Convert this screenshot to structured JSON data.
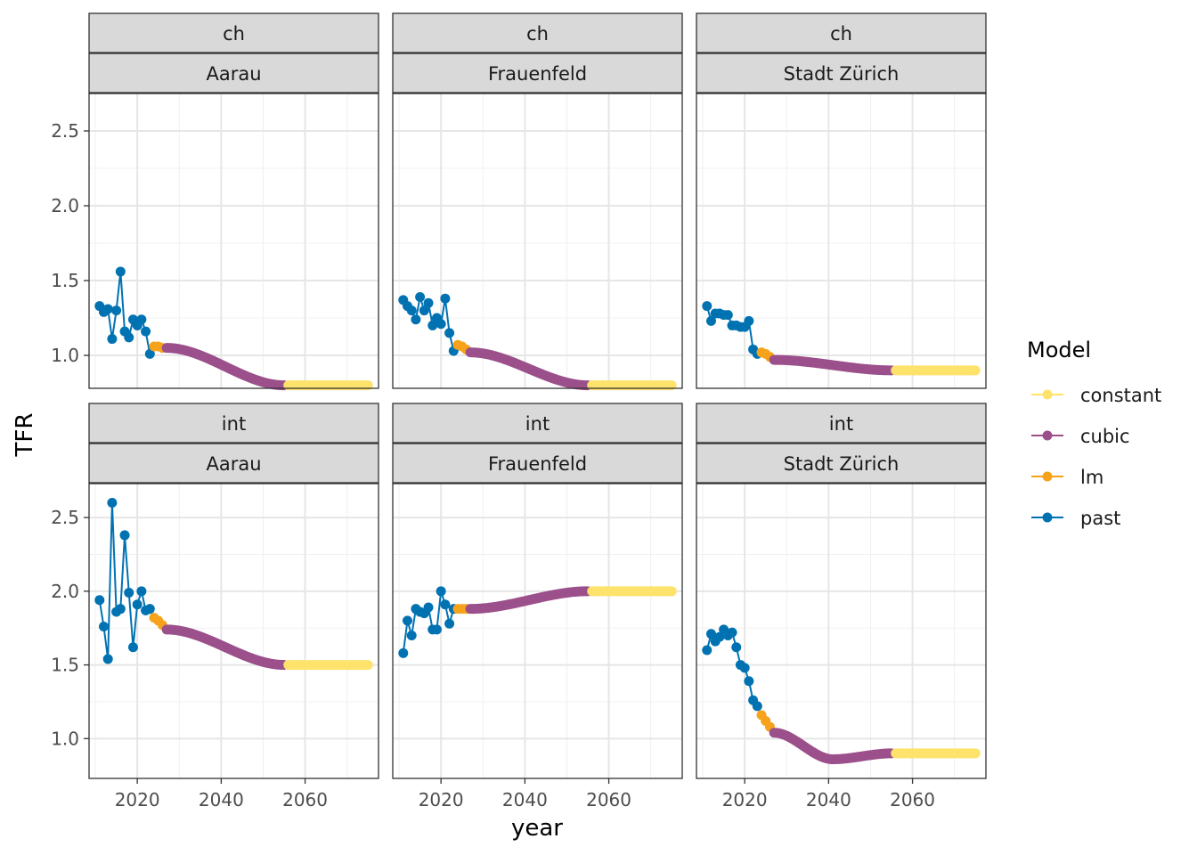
{
  "chart_data": {
    "type": "line",
    "xlabel": "year",
    "ylabel": "TFR",
    "xlim": [
      2008.5,
      2077.5
    ],
    "x_ticks": [
      2020,
      2040,
      2060
    ],
    "x_tick_labels": [
      "2020",
      "2040",
      "2060"
    ],
    "grid": true,
    "legend": {
      "title": "Model",
      "placement": "right",
      "entries": [
        {
          "label": "constant",
          "color": "#FDE26C"
        },
        {
          "label": "cubic",
          "color": "#9B4F8B"
        },
        {
          "label": "lm",
          "color": "#F7A21B"
        },
        {
          "label": "past",
          "color": "#0072B2"
        }
      ]
    },
    "colors": {
      "constant": "#FDE26C",
      "cubic": "#9B4F8B",
      "lm": "#F7A21B",
      "past": "#0072B2"
    },
    "rows": [
      {
        "strip": "ch",
        "ylim": [
          0.78,
          2.75
        ],
        "y_ticks": [
          1.0,
          1.5,
          2.0,
          2.5
        ],
        "y_tick_labels": [
          "1.0",
          "1.5",
          "2.0",
          "2.5"
        ]
      },
      {
        "strip": "int",
        "ylim": [
          0.73,
          2.73
        ],
        "y_ticks": [
          1.0,
          1.5,
          2.0,
          2.5
        ],
        "y_tick_labels": [
          "1.0",
          "1.5",
          "2.0",
          "2.5"
        ]
      }
    ],
    "panels": [
      {
        "row": 0,
        "col": 0,
        "strip_top": "ch",
        "strip_bottom": "Aarau",
        "past": {
          "x": [
            2011,
            2012,
            2013,
            2014,
            2015,
            2016,
            2017,
            2018,
            2019,
            2020,
            2021,
            2022,
            2023
          ],
          "y": [
            1.33,
            1.29,
            1.31,
            1.11,
            1.3,
            1.56,
            1.16,
            1.12,
            1.24,
            1.2,
            1.24,
            1.16,
            1.01
          ]
        },
        "lm": {
          "x": [
            2024,
            2025,
            2026
          ],
          "y": [
            1.06,
            1.06,
            1.05
          ]
        },
        "cubic": {
          "start": 2027,
          "end": 2055,
          "y_start": 1.05,
          "y_end": 0.8
        },
        "constant": {
          "start": 2056,
          "end": 2075,
          "y": 0.8
        }
      },
      {
        "row": 0,
        "col": 1,
        "strip_top": "ch",
        "strip_bottom": "Frauenfeld",
        "past": {
          "x": [
            2011,
            2012,
            2013,
            2014,
            2015,
            2016,
            2017,
            2018,
            2019,
            2020,
            2021,
            2022,
            2023
          ],
          "y": [
            1.37,
            1.33,
            1.3,
            1.24,
            1.39,
            1.3,
            1.35,
            1.2,
            1.25,
            1.21,
            1.38,
            1.15,
            1.03
          ]
        },
        "lm": {
          "x": [
            2024,
            2025,
            2026
          ],
          "y": [
            1.07,
            1.06,
            1.04
          ]
        },
        "cubic": {
          "start": 2027,
          "end": 2055,
          "y_start": 1.02,
          "y_end": 0.8
        },
        "constant": {
          "start": 2056,
          "end": 2075,
          "y": 0.8
        }
      },
      {
        "row": 0,
        "col": 2,
        "strip_top": "ch",
        "strip_bottom": "Stadt Zürich",
        "past": {
          "x": [
            2011,
            2012,
            2013,
            2014,
            2015,
            2016,
            2017,
            2018,
            2019,
            2020,
            2021,
            2022,
            2023
          ],
          "y": [
            1.33,
            1.23,
            1.28,
            1.28,
            1.27,
            1.27,
            1.2,
            1.2,
            1.19,
            1.19,
            1.23,
            1.04,
            1.01
          ]
        },
        "lm": {
          "x": [
            2024,
            2025,
            2026
          ],
          "y": [
            1.02,
            1.01,
            0.99
          ]
        },
        "cubic": {
          "start": 2027,
          "end": 2055,
          "y_start": 0.97,
          "y_end": 0.9
        },
        "constant": {
          "start": 2056,
          "end": 2075,
          "y": 0.9
        }
      },
      {
        "row": 1,
        "col": 0,
        "strip_top": "int",
        "strip_bottom": "Aarau",
        "past": {
          "x": [
            2011,
            2012,
            2013,
            2014,
            2015,
            2016,
            2017,
            2018,
            2019,
            2020,
            2021,
            2022,
            2023
          ],
          "y": [
            1.94,
            1.76,
            1.54,
            2.6,
            1.86,
            1.88,
            2.38,
            1.99,
            1.62,
            1.91,
            2.0,
            1.87,
            1.88
          ]
        },
        "lm": {
          "x": [
            2024,
            2025,
            2026
          ],
          "y": [
            1.82,
            1.8,
            1.77
          ]
        },
        "cubic": {
          "start": 2027,
          "end": 2055,
          "y_start": 1.74,
          "y_end": 1.5
        },
        "constant": {
          "start": 2056,
          "end": 2075,
          "y": 1.5
        }
      },
      {
        "row": 1,
        "col": 1,
        "strip_top": "int",
        "strip_bottom": "Frauenfeld",
        "past": {
          "x": [
            2011,
            2012,
            2013,
            2014,
            2015,
            2016,
            2017,
            2018,
            2019,
            2020,
            2021,
            2022,
            2023
          ],
          "y": [
            1.58,
            1.8,
            1.7,
            1.88,
            1.86,
            1.85,
            1.89,
            1.74,
            1.74,
            2.0,
            1.91,
            1.78,
            1.88
          ]
        },
        "lm": {
          "x": [
            2024,
            2025,
            2026
          ],
          "y": [
            1.88,
            1.88,
            1.88
          ]
        },
        "cubic": {
          "start": 2027,
          "end": 2055,
          "y_start": 1.88,
          "y_end": 2.0
        },
        "constant": {
          "start": 2056,
          "end": 2075,
          "y": 2.0
        }
      },
      {
        "row": 1,
        "col": 2,
        "strip_top": "int",
        "strip_bottom": "Stadt Zürich",
        "past": {
          "x": [
            2011,
            2012,
            2013,
            2014,
            2015,
            2016,
            2017,
            2018,
            2019,
            2020,
            2021,
            2022,
            2023
          ],
          "y": [
            1.6,
            1.71,
            1.66,
            1.69,
            1.74,
            1.7,
            1.72,
            1.62,
            1.5,
            1.48,
            1.39,
            1.26,
            1.22
          ]
        },
        "lm": {
          "x": [
            2024,
            2025,
            2026
          ],
          "y": [
            1.16,
            1.12,
            1.08
          ]
        },
        "cubic": {
          "start": 2027,
          "end": 2055,
          "y_start": 1.04,
          "y_end": 0.9,
          "y_min": 0.86,
          "x_min": 2041
        },
        "constant": {
          "start": 2056,
          "end": 2075,
          "y": 0.9
        }
      }
    ]
  }
}
